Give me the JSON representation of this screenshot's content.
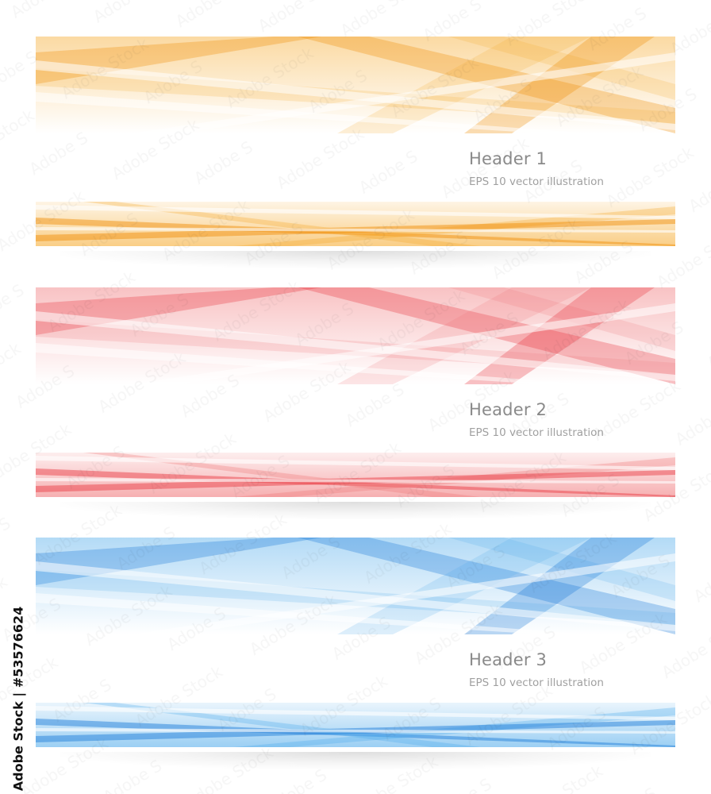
{
  "banners": [
    {
      "title": "Header 1",
      "subtitle": "EPS 10 vector illustration",
      "color": "#f5a623",
      "dark": "#f08a00"
    },
    {
      "title": "Header 2",
      "subtitle": "EPS 10 vector illustration",
      "color": "#ef6f72",
      "dark": "#e8333b"
    },
    {
      "title": "Header 3",
      "subtitle": "EPS 10 vector illustration",
      "color": "#4aa8ea",
      "dark": "#1778d6"
    }
  ],
  "watermark": {
    "text": "Adobe Stock | #53576624"
  }
}
